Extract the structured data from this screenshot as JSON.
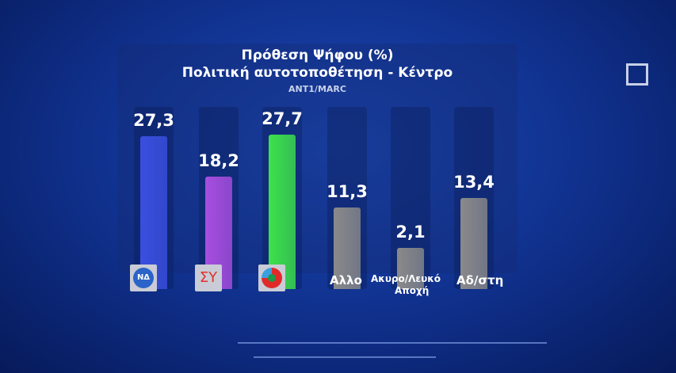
{
  "chart_data": {
    "type": "bar",
    "title": "Πρόθεση Ψήφου (%)",
    "subtitle": "Πολιτική αυτοτοποθέτηση - Κέντρο",
    "source": "ANT1/MARC",
    "categories": [
      "ΝΔ",
      "ΣΥΡΙΖΑ",
      "ΠΑΣΟΚ",
      "Αλλο",
      "Ακυρο/Λευκό Αποχή",
      "Αδ/στη"
    ],
    "labels": [
      "",
      "",
      "",
      "Αλλο",
      "Ακυρο/Λευκό",
      "Αδ/στη"
    ],
    "label2": "Αποχή",
    "values_text": [
      "27,3",
      "18,2",
      "27,7",
      "11,3",
      "2,1",
      "13,4"
    ],
    "values": [
      27.3,
      18.2,
      27.7,
      11.3,
      2.1,
      13.4
    ],
    "colors": [
      "#3a4fe0",
      "#a84ee0",
      "#3de24a",
      "#8a8a8a",
      "#8a8a8a",
      "#8a8a8a"
    ],
    "logos": [
      "nd-logo",
      "syriza-logo",
      "pasok-logo"
    ],
    "logo_text": [
      "ΝΔ",
      "ΣΥ",
      ""
    ]
  }
}
